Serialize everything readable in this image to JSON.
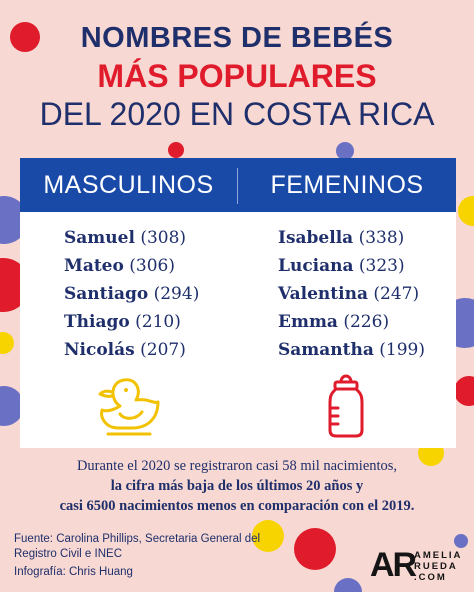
{
  "title": {
    "line1": "NOMBRES DE BEBÉS",
    "line2": "MÁS POPULARES",
    "line3": "DEL 2020 EN COSTA RICA"
  },
  "colors": {
    "background": "#f7d8d2",
    "navy": "#1f2f6b",
    "red": "#e01b2c",
    "blue_header": "#1a4aa8",
    "yellow": "#f7d400",
    "periwinkle": "#6a70c4"
  },
  "masculinos": {
    "heading": "MASCULINOS",
    "icon": "rubber-duck-icon",
    "names": [
      {
        "name": "Samuel",
        "count": "(308)"
      },
      {
        "name": "Mateo",
        "count": "(306)"
      },
      {
        "name": "Santiago",
        "count": "(294)"
      },
      {
        "name": "Thiago",
        "count": "(210)"
      },
      {
        "name": "Nicolás",
        "count": "(207)"
      }
    ]
  },
  "femeninos": {
    "heading": "FEMENINOS",
    "icon": "baby-bottle-icon",
    "names": [
      {
        "name": "Isabella",
        "count": "(338)"
      },
      {
        "name": "Luciana",
        "count": "(323)"
      },
      {
        "name": "Valentina",
        "count": "(247)"
      },
      {
        "name": "Emma",
        "count": "(226)"
      },
      {
        "name": "Samantha",
        "count": "(199)"
      }
    ]
  },
  "summary": {
    "line1": "Durante el 2020 se registraron casi 58 mil nacimientos,",
    "line2": "la cifra más baja de los últimos 20 años y",
    "line3": "casi 6500 nacimientos menos en comparación con el 2019."
  },
  "credits": {
    "source_line1": "Fuente:  Carolina Phillips, Secretaria General del",
    "source_line2": "Registro Civil e INEC",
    "infographic": "Infografía: Chris Huang"
  },
  "logo": {
    "mark": "AR",
    "line1": "AMELIA",
    "line2": "RUEDA",
    "line3": ".COM"
  }
}
